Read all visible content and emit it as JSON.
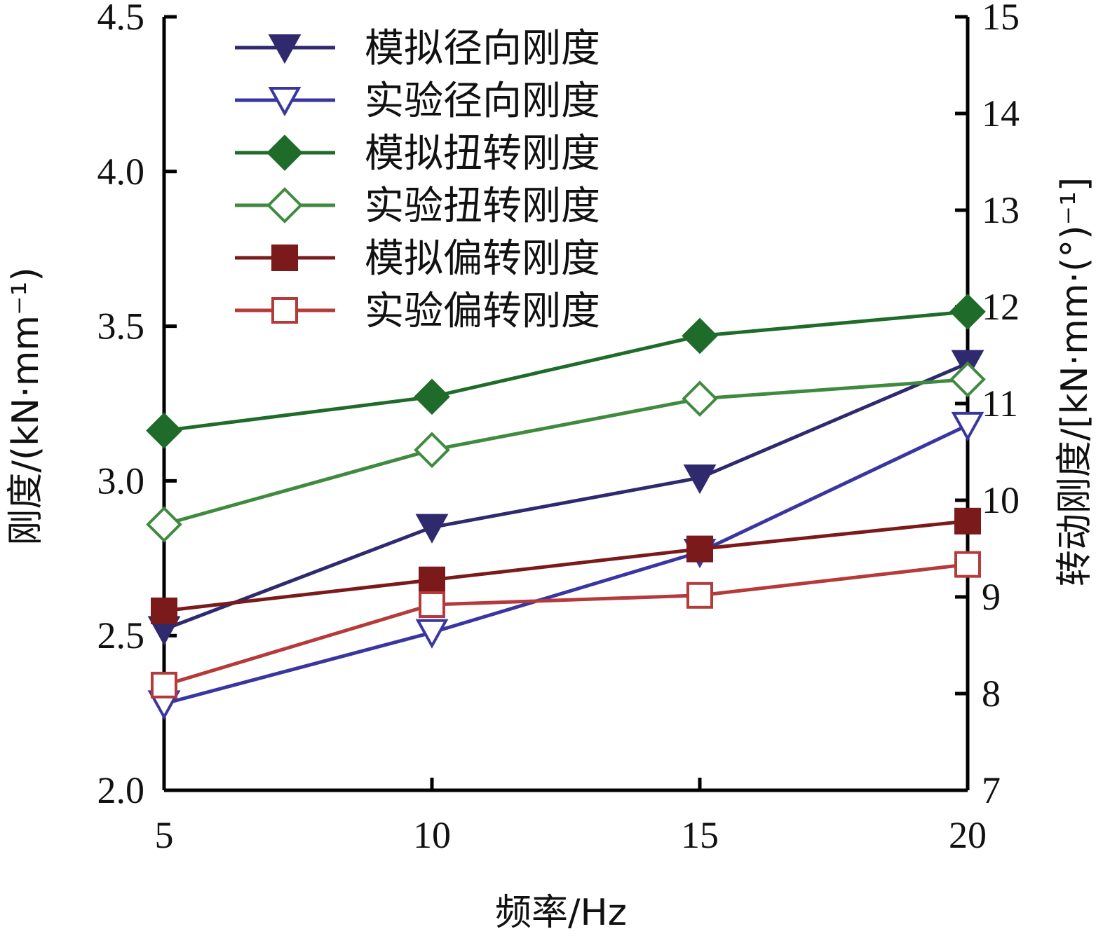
{
  "chart_data": {
    "type": "line",
    "xlabel": "频率/Hz",
    "ylabel_left": "刚度/(kN·mm⁻¹)",
    "ylabel_right": "转动刚度/[kN·mm·(°)⁻¹]",
    "x": [
      5,
      10,
      15,
      20
    ],
    "x_ticks": [
      "5",
      "10",
      "15",
      "20"
    ],
    "xlim": [
      5,
      20
    ],
    "ylim_left": [
      2.0,
      4.5
    ],
    "ylim_right": [
      7,
      15
    ],
    "yticks_left": [
      "2.0",
      "2.5",
      "3.0",
      "3.5",
      "4.0",
      "4.5"
    ],
    "yticks_right": [
      "7",
      "8",
      "9",
      "10",
      "11",
      "12",
      "13",
      "14",
      "15"
    ],
    "grid": false,
    "legend_position": "top-left",
    "series": [
      {
        "name": "模拟径向刚度",
        "axis": "left",
        "values": [
          2.52,
          2.85,
          3.01,
          3.38
        ],
        "color": "#2f2a6e",
        "marker": "triangle-down",
        "filled": true
      },
      {
        "name": "实验径向刚度",
        "axis": "left",
        "values": [
          2.28,
          2.51,
          2.77,
          3.18
        ],
        "color": "#3a36a0",
        "marker": "triangle-down",
        "filled": false
      },
      {
        "name": "模拟扭转刚度",
        "axis": "right",
        "values": [
          10.72,
          11.07,
          11.7,
          11.95
        ],
        "color": "#1e6b2a",
        "marker": "diamond",
        "filled": true
      },
      {
        "name": "实验扭转刚度",
        "axis": "right",
        "values": [
          9.75,
          10.52,
          11.05,
          11.25
        ],
        "color": "#3f8a3f",
        "marker": "diamond",
        "filled": false
      },
      {
        "name": "模拟偏转刚度",
        "axis": "left",
        "values": [
          2.58,
          2.68,
          2.78,
          2.87
        ],
        "color": "#7a1a1a",
        "marker": "square",
        "filled": true
      },
      {
        "name": "实验偏转刚度",
        "axis": "left",
        "values": [
          2.34,
          2.6,
          2.63,
          2.73
        ],
        "color": "#b53a3a",
        "marker": "square",
        "filled": false
      }
    ]
  }
}
